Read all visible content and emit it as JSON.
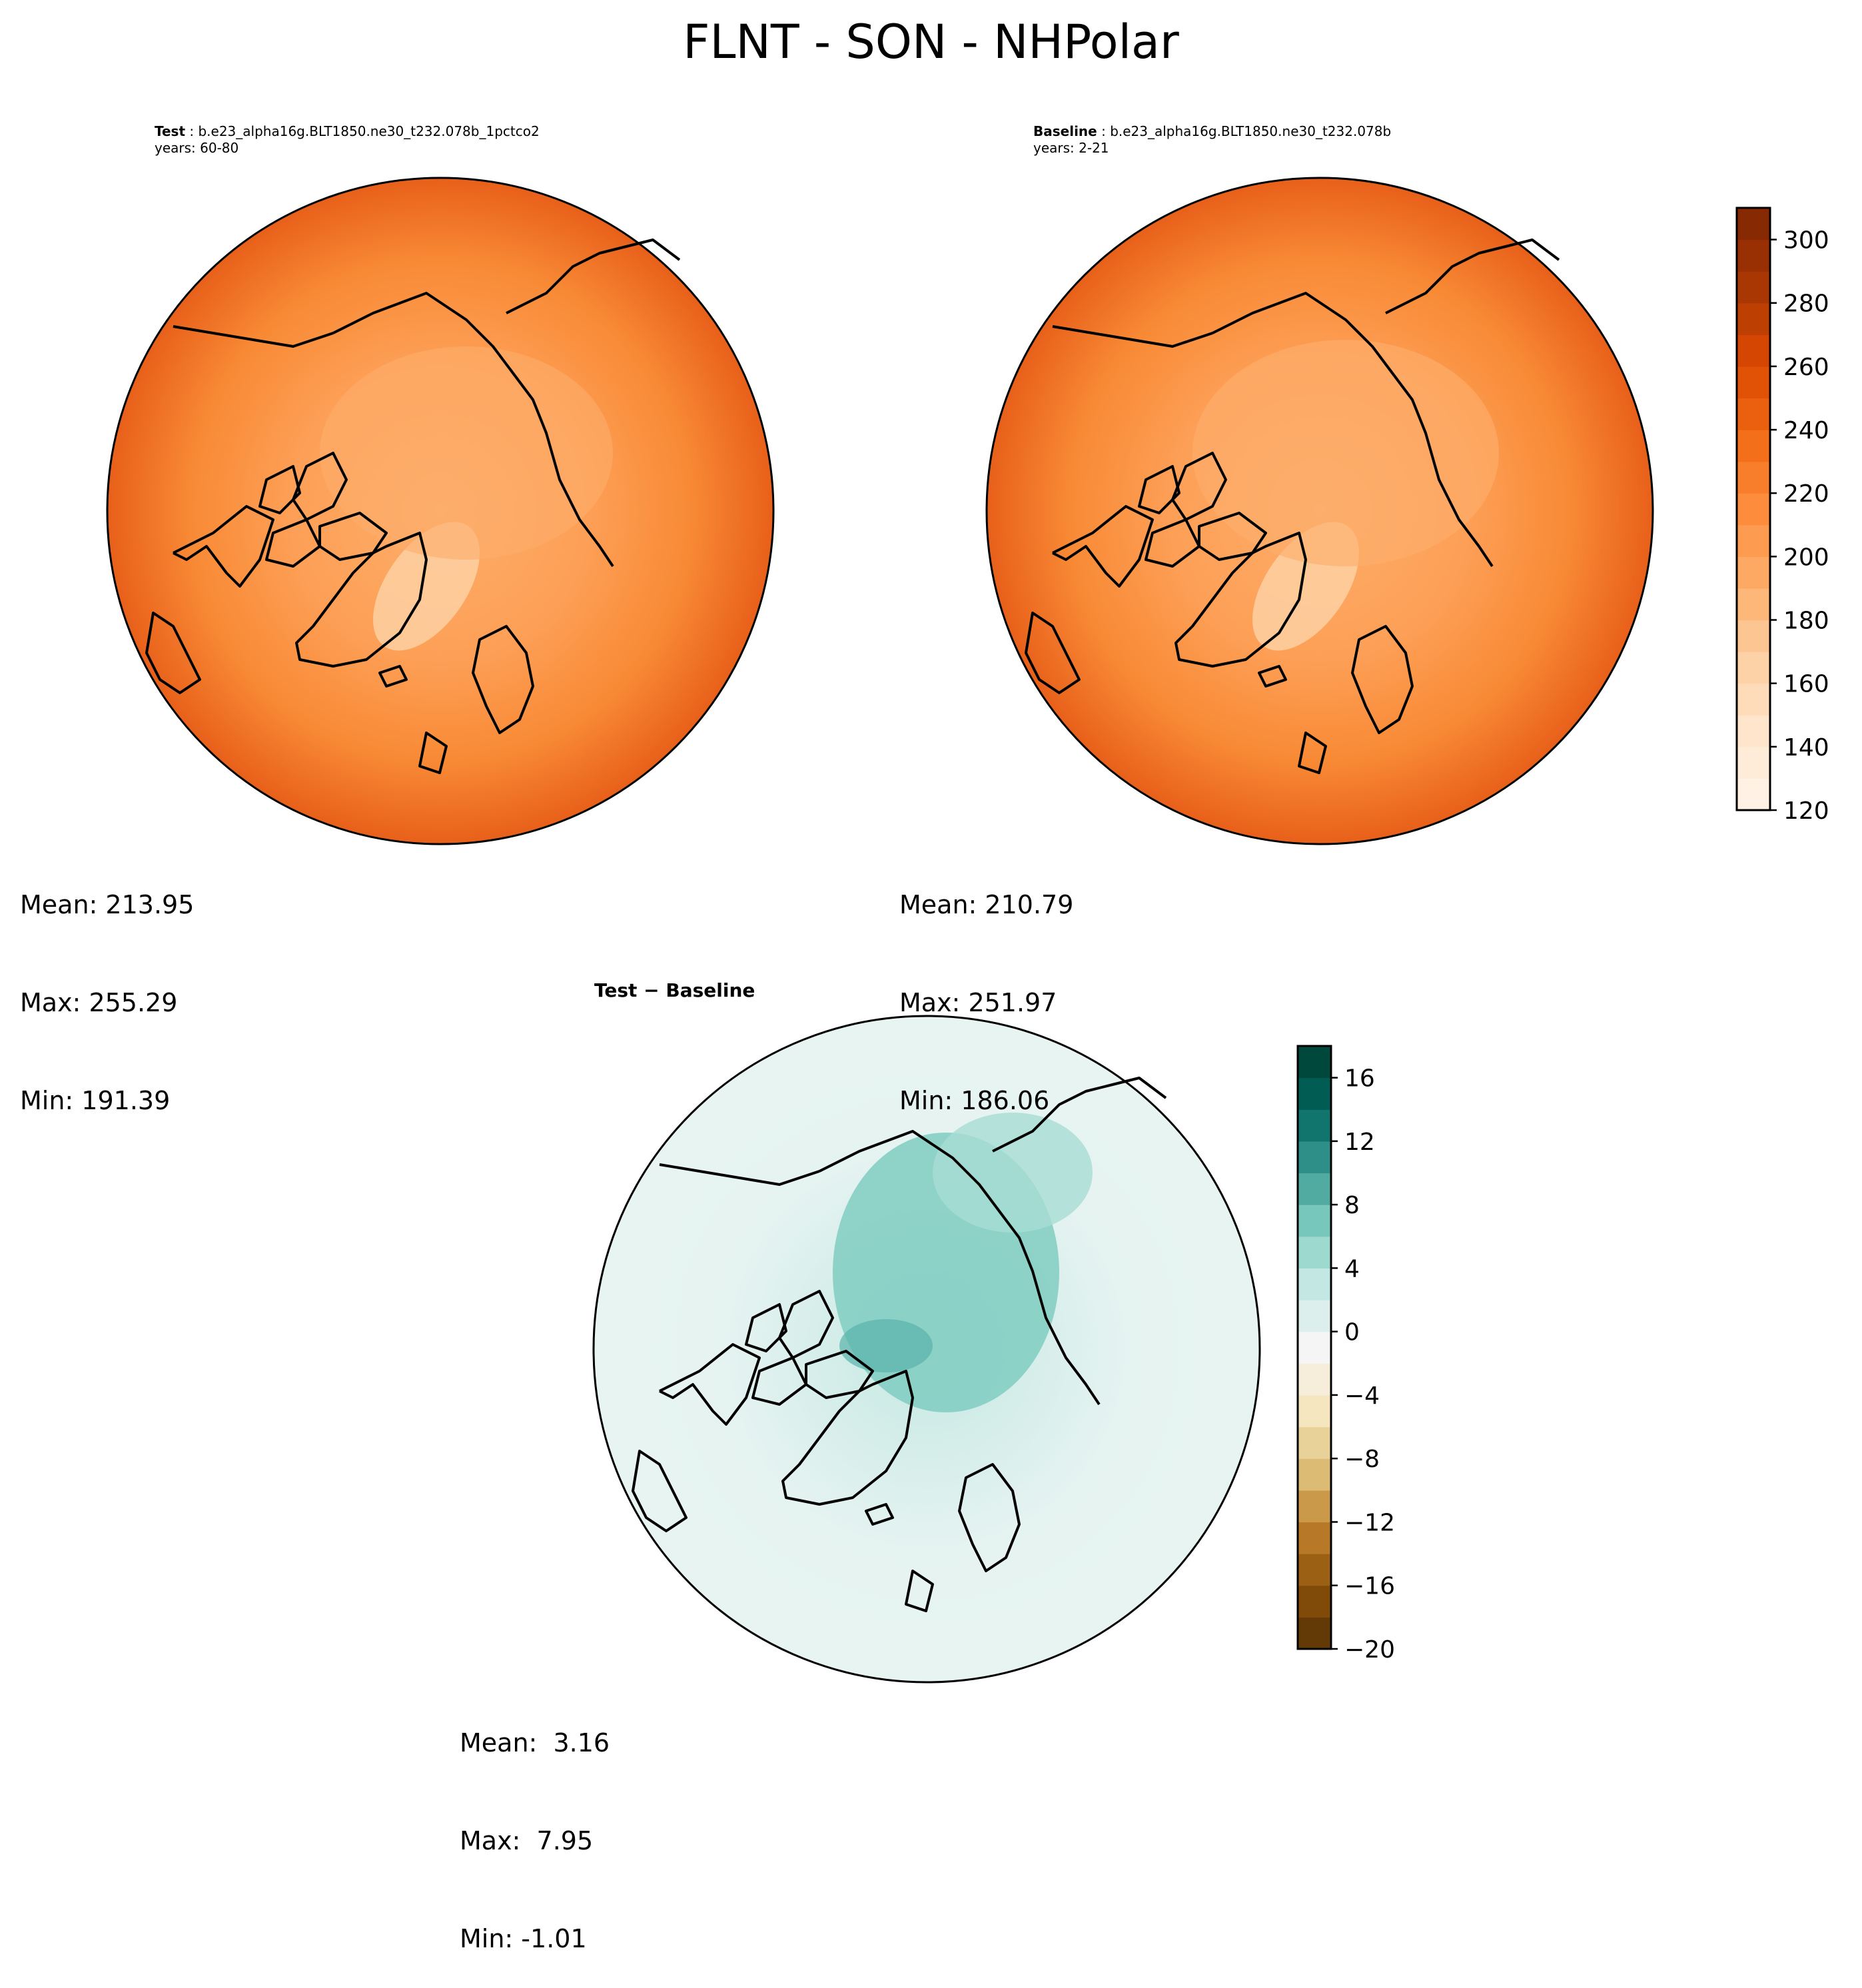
{
  "figure": {
    "title": "FLNT - SON - NHPolar"
  },
  "panels": {
    "test": {
      "label": "Test",
      "case": "b.e23_alpha16g.BLT1850.ne30_t232.078b_1pctco2",
      "years": "years: 60-80",
      "stats": {
        "mean": "Mean: 213.95",
        "max": "Max: 255.29",
        "min": "Min: 191.39"
      }
    },
    "baseline": {
      "label": "Baseline",
      "case": "b.e23_alpha16g.BLT1850.ne30_t232.078b",
      "years": "years: 2-21",
      "stats": {
        "mean": "Mean: 210.79",
        "max": "Max: 251.97",
        "min": "Min: 186.06"
      }
    },
    "diff": {
      "title_a": "Test",
      "title_sep": " − ",
      "title_b": "Baseline",
      "stats": {
        "mean": "Mean:  3.16",
        "max": "Max:  7.95",
        "min": "Min: -1.01"
      }
    }
  },
  "colorbars": {
    "main": {
      "ticks": [
        "120",
        "140",
        "160",
        "180",
        "200",
        "220",
        "240",
        "260",
        "280",
        "300"
      ],
      "tick_values": [
        120,
        140,
        160,
        180,
        200,
        220,
        240,
        260,
        280,
        300
      ],
      "vmin": 120,
      "vmax": 310,
      "colormap": "Oranges"
    },
    "diff": {
      "ticks": [
        "−20",
        "−16",
        "−12",
        "−8",
        "−4",
        "0",
        "4",
        "8",
        "12",
        "16"
      ],
      "tick_values": [
        -20,
        -16,
        -12,
        -8,
        -4,
        0,
        4,
        8,
        12,
        16
      ],
      "vmin": -20,
      "vmax": 18,
      "colormap": "BrBG"
    }
  },
  "colors": {
    "orange_dark": "#7f2704",
    "orange_mid": "#f5822e",
    "orange_light": "#fdae6b",
    "diff_teal": "#80cdc1",
    "diff_light": "#e5f3f1",
    "coastline": "#000000"
  }
}
